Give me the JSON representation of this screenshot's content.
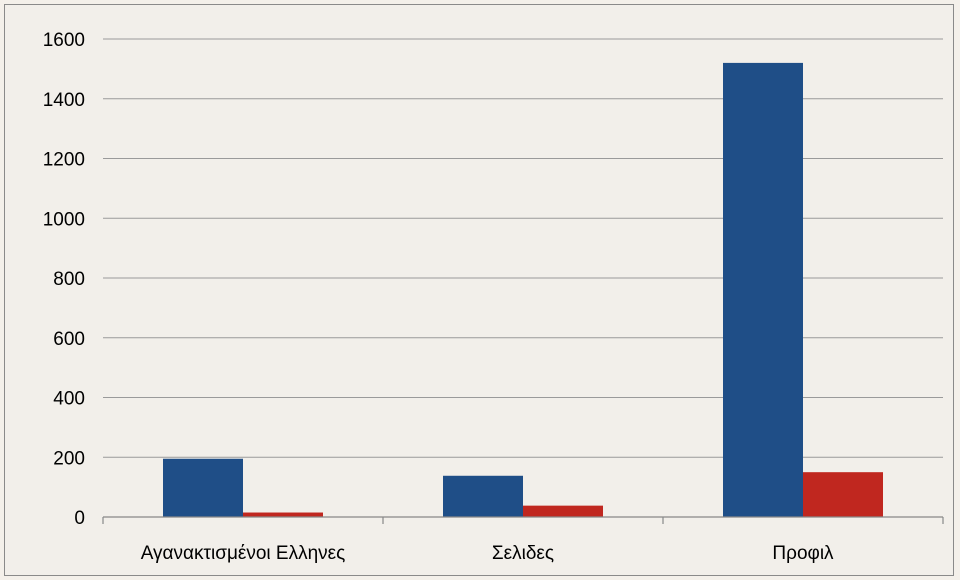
{
  "colors": {
    "series_1": "#1f4e87",
    "series_2": "#c0271f",
    "background": "#f2efea",
    "grid": "#9a9a9a"
  },
  "chart_data": {
    "type": "bar",
    "title": "",
    "xlabel": "",
    "ylabel": "",
    "categories": [
      "Αγανακτισμένοι Ελληνες",
      "Σελιδες",
      "Προφιλ"
    ],
    "series": [
      {
        "values": [
          195,
          138,
          1520
        ]
      },
      {
        "values": [
          15,
          38,
          150
        ]
      }
    ],
    "ylim": [
      0,
      1600
    ],
    "yticks": [
      0,
      200,
      400,
      600,
      800,
      1000,
      1200,
      1400,
      1600
    ],
    "grid": true,
    "legend": "none"
  }
}
